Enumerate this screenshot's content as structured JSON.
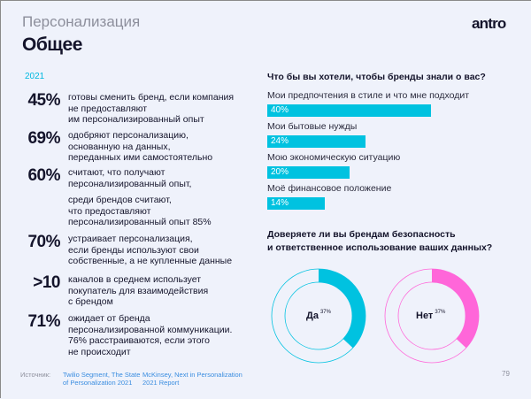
{
  "header": {
    "section": "Персонализация",
    "title": "Общее",
    "logo": "antro",
    "page_number": "79"
  },
  "left": {
    "year": "2021",
    "stats": [
      {
        "value": "45%",
        "lines": [
          "готовы сменить бренд, если компания",
          "не предоставляют",
          "им персонализированный опыт"
        ]
      },
      {
        "value": "69%",
        "lines": [
          "одобряют персонализацию,",
          "основанную на данных,",
          "переданных ими самостоятельно"
        ]
      },
      {
        "value": "60%",
        "lines": [
          "считают, что получают",
          "персонализированный опыт,"
        ],
        "extra": [
          "среди брендов считают,",
          "что предоставляют",
          "персонализированный опыт 85%"
        ]
      },
      {
        "value": "70%",
        "lines": [
          "устраивает персонализация,",
          "если бренды используют свои",
          "собственные, а не купленные данные"
        ]
      },
      {
        "value": ">10",
        "lines": [
          "каналов в среднем использует",
          "покупатель для взаимодействия",
          "с брендом"
        ]
      },
      {
        "value": "71%",
        "lines": [
          "ожидает от бренда",
          "персонализированной коммуникации.",
          "76% расстраиваются, если этого",
          "не происходит"
        ]
      }
    ],
    "sources": {
      "label": "Источник:",
      "items": [
        [
          "Twilio Segment, The State",
          "of Personalization 2021"
        ],
        [
          "McKinsey, Next in Personalization",
          "2021 Report"
        ]
      ]
    }
  },
  "chart_data": [
    {
      "type": "bar",
      "title": "Что бы вы хотели, чтобы бренды знали о вас?",
      "orientation": "horizontal",
      "categories": [
        "Мои предпочтения в стиле и что мне подходит",
        "Мои бытовые нужды",
        "Мою экономическую ситуацию",
        "Моё финансовое положение"
      ],
      "values": [
        40,
        24,
        20,
        14
      ],
      "value_labels": [
        "40%",
        "24%",
        "20%",
        "14%"
      ],
      "color": "#00c2e0"
    },
    {
      "type": "pie",
      "title": "Доверяете ли вы брендам безопасность и ответственное использование ваших данных?",
      "title_lines": [
        "Доверяете ли вы брендам безопасность",
        "и ответственное использование ваших данных?"
      ],
      "donuts": [
        {
          "label": "Да",
          "value": 37,
          "value_label": "37%",
          "color": "#00c2e0"
        },
        {
          "label": "Нет",
          "value": 37,
          "value_label": "37%",
          "color": "#ff66d9"
        }
      ]
    }
  ]
}
